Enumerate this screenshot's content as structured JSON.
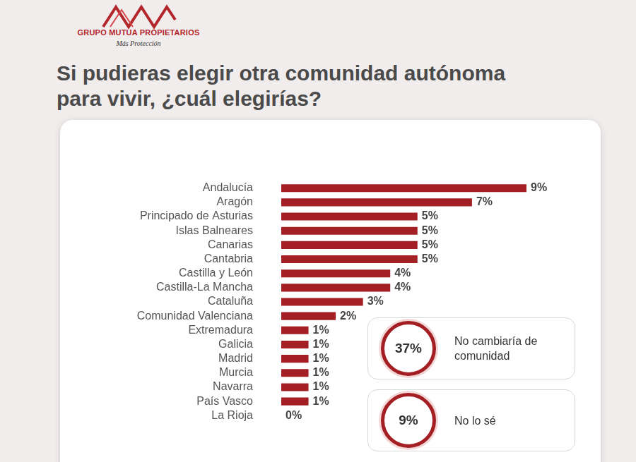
{
  "header": {
    "brand": "GRUPO MUTUA PROPIETARIOS",
    "tagline": "Más Protección"
  },
  "chart_data": {
    "type": "bar",
    "orientation": "horizontal",
    "title": "Si pudieras elegir otra comunidad autónoma para vivir, ¿cuál elegirías?",
    "categories": [
      "Andalucía",
      "Aragón",
      "Principado de Asturias",
      "Islas Balneares",
      "Canarias",
      "Cantabria",
      "Castilla y León",
      "Castilla-La Mancha",
      "Cataluña",
      "Comunidad Valenciana",
      "Extremadura",
      "Galicia",
      "Madrid",
      "Murcia",
      "Navarra",
      "País Vasco",
      "La Rioja"
    ],
    "values": [
      9,
      7,
      5,
      5,
      5,
      5,
      4,
      4,
      3,
      2,
      1,
      1,
      1,
      1,
      1,
      1,
      0
    ],
    "value_labels": [
      "9%",
      "7%",
      "5%",
      "5%",
      "5%",
      "5%",
      "4%",
      "4%",
      "3%",
      "2%",
      "1%",
      "1%",
      "1%",
      "1%",
      "1%",
      "1%",
      "0%"
    ],
    "color": "#a31f24",
    "data_labels": true,
    "tick_labels": "y",
    "grid": false,
    "annotations": [
      {
        "value": 37,
        "label": "37%",
        "text": "No cambiaría de comunidad"
      },
      {
        "value": 9,
        "label": "9%",
        "text": "No lo sé"
      }
    ]
  }
}
